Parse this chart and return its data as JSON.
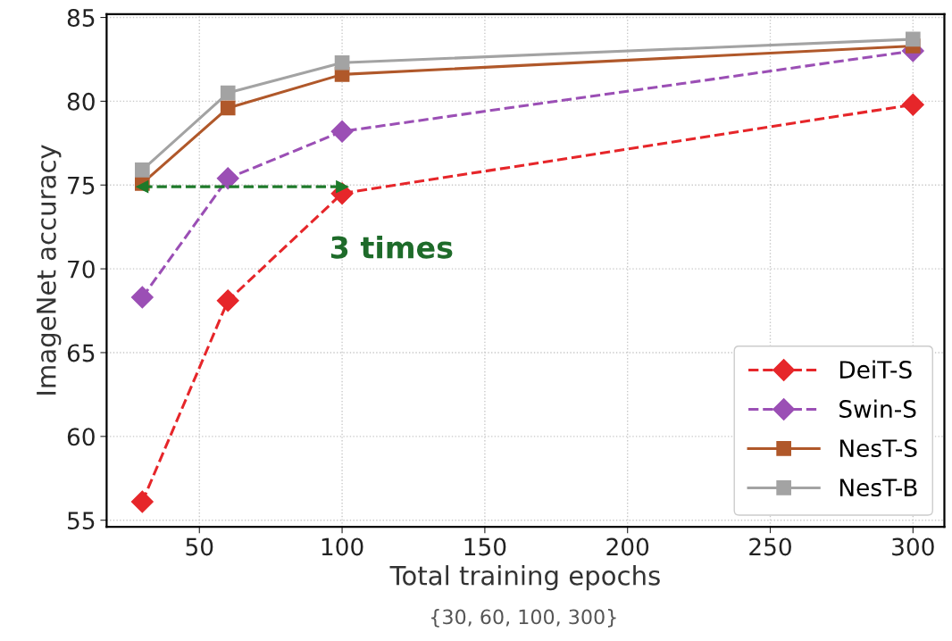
{
  "chart_data": {
    "type": "line",
    "xlabel": "Total training epochs",
    "ylabel": "ImageNet accuracy",
    "x": [
      30,
      60,
      100,
      300
    ],
    "series": [
      {
        "name": "DeiT-S",
        "color": "#e6262a",
        "values": [
          56.1,
          68.1,
          74.5,
          79.8
        ],
        "marker": "diamond",
        "line_style": "dashed"
      },
      {
        "name": "Swin-S",
        "color": "#9b4fb5",
        "values": [
          68.3,
          75.4,
          78.2,
          83.0
        ],
        "marker": "diamond",
        "line_style": "dashed"
      },
      {
        "name": "NesT-S",
        "color": "#b0582a",
        "values": [
          75.1,
          79.6,
          81.6,
          83.3
        ],
        "marker": "square",
        "line_style": "solid"
      },
      {
        "name": "NesT-B",
        "color": "#a3a3a3",
        "values": [
          75.9,
          80.5,
          82.3,
          83.7
        ],
        "marker": "square",
        "line_style": "solid"
      },
      {
        "type": "line",
        "color": "#1e7a2a",
        "x": [
          30,
          100
        ],
        "values": [
          74.9,
          74.9
        ],
        "line_style": "dashed",
        "marker": "triangle"
      }
    ],
    "xlim": [
      17.5,
      311
    ],
    "ylim": [
      54.6,
      85.2
    ],
    "xticks": [
      50,
      100,
      150,
      200,
      250,
      300
    ],
    "yticks": [
      55,
      60,
      65,
      70,
      75,
      80,
      85
    ],
    "grid": true,
    "legend": "bottom right",
    "annotations": [
      "3 times",
      "{30, 60, 100, 300}"
    ]
  }
}
